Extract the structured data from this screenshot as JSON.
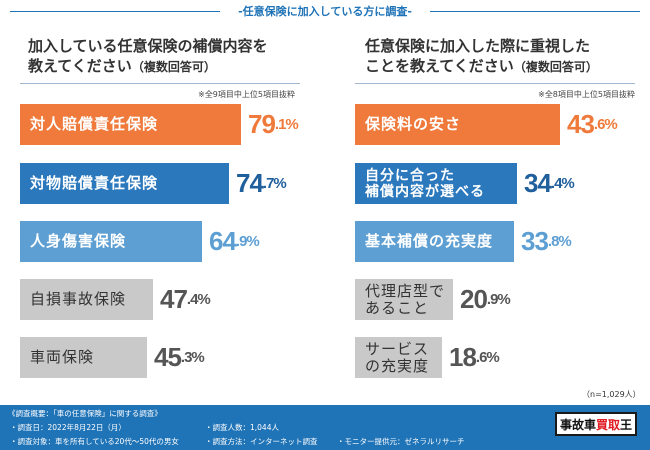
{
  "banner": "-任意保険に加入している方に調査-",
  "colors": {
    "orange": "#ef7a3b",
    "blue_dark": "#2b78bd",
    "blue_light": "#5d9fd3",
    "gray": "#c9c9c9",
    "accent_blue": "#1f73b7"
  },
  "left_panel": {
    "title_line1": "加入している任意保険の補償内容を",
    "title_line2": "教えてください",
    "title_suffix": "（複数回答可）",
    "note": "※全9項目中上位5項目抜粋"
  },
  "right_panel": {
    "title_line1": "任意保険に加入した際に重視した",
    "title_line2": "ことを教えてください",
    "title_suffix": "（複数回答可）",
    "note": "※全8項目中上位5項目抜粋",
    "sample": "（n=1,029人）"
  },
  "chart_data": [
    {
      "type": "bar",
      "title": "加入している任意保険の補償内容を教えてください（複数回答可）",
      "categories": [
        "対人賠償責任保険",
        "対物賠償責任保険",
        "人身傷害保険",
        "自損事故保険",
        "車両保険"
      ],
      "values": [
        79.1,
        74.7,
        64.9,
        47.4,
        45.3
      ],
      "value_labels": [
        {
          "int": "79",
          "dec": ".1%"
        },
        {
          "int": "74",
          "dec": ".7%"
        },
        {
          "int": "64",
          "dec": ".9%"
        },
        {
          "int": "47",
          "dec": ".4%"
        },
        {
          "int": "45",
          "dec": ".3%"
        }
      ],
      "bar_colors": [
        "#ef7a3b",
        "#2b78bd",
        "#5d9fd3",
        "#c9c9c9",
        "#c9c9c9"
      ],
      "value_colors": [
        "#ef7a3b",
        "#1f5f9c",
        "#5d9fd3",
        "#555555",
        "#555555"
      ],
      "orientation": "horizontal"
    },
    {
      "type": "bar",
      "title": "任意保険に加入した際に重視したことを教えてください（複数回答可）",
      "categories": [
        "保険料の安さ",
        "自分に合った補償内容が選べる",
        "基本補償の充実度",
        "代理店型であること",
        "サービスの充実度"
      ],
      "category_lines": [
        [
          "保険料の安さ"
        ],
        [
          "自分に合った",
          "補償内容が選べる"
        ],
        [
          "基本補償の充実度"
        ],
        [
          "代理店型であること"
        ],
        [
          "サービスの充実度"
        ]
      ],
      "values": [
        43.6,
        34.4,
        33.8,
        20.9,
        18.6
      ],
      "value_labels": [
        {
          "int": "43",
          "dec": ".6%"
        },
        {
          "int": "34",
          "dec": ".4%"
        },
        {
          "int": "33",
          "dec": ".8%"
        },
        {
          "int": "20",
          "dec": ".9%"
        },
        {
          "int": "18",
          "dec": ".6%"
        }
      ],
      "bar_colors": [
        "#ef7a3b",
        "#2b78bd",
        "#5d9fd3",
        "#c9c9c9",
        "#c9c9c9"
      ],
      "value_colors": [
        "#ef7a3b",
        "#1f5f9c",
        "#5d9fd3",
        "#555555",
        "#555555"
      ],
      "orientation": "horizontal"
    }
  ],
  "footer": {
    "overview": "《調査概要：「車の任意保険」に関する調査》",
    "date": "・調査日：2022年8月22日（月）",
    "count": "・調査人数：1,044人",
    "target": "・調査対象：車を所有している20代〜50代の男女",
    "method": "・調査方法：インターネット調査",
    "provider": "・モニター提供元：ゼネラルリサーチ",
    "logo_black": "事故車",
    "logo_red": "買取",
    "logo_black2": "王"
  }
}
